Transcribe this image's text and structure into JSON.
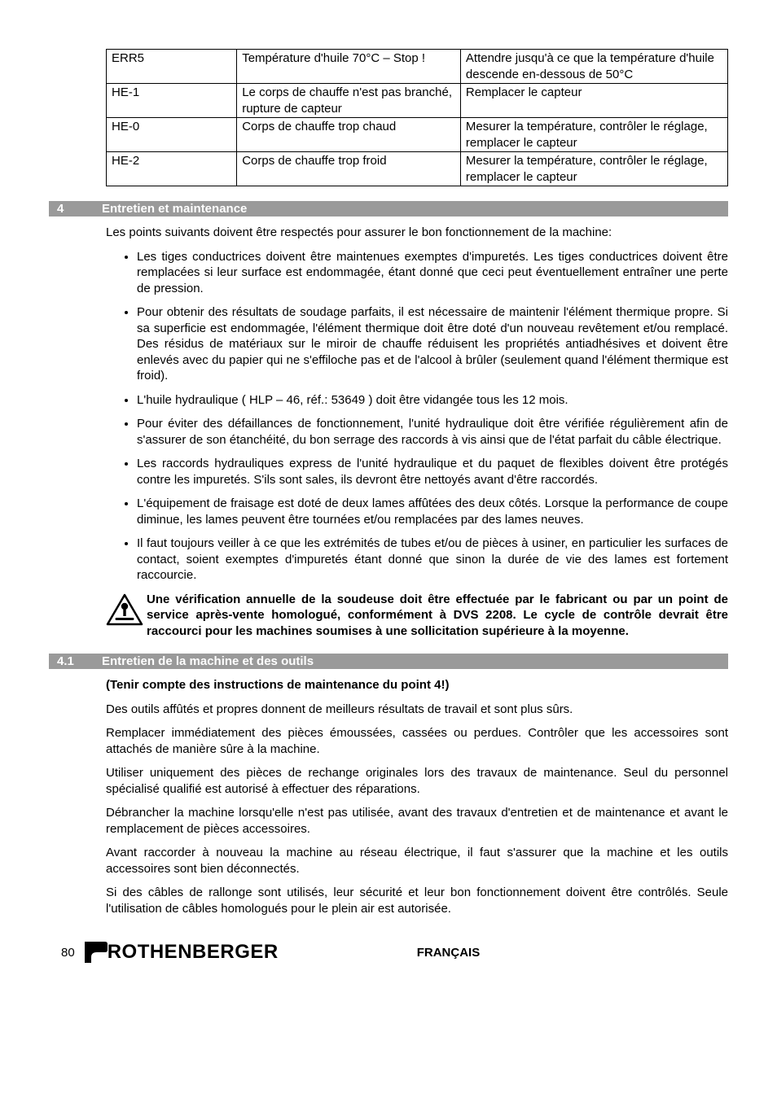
{
  "table": {
    "col_widths": [
      "21%",
      "36%",
      "43%"
    ],
    "rows": [
      {
        "code": "ERR5",
        "cause": "Température d'huile 70°C – Stop !",
        "action": "Attendre jusqu'à ce que la température d'huile descende en-dessous de 50°C"
      },
      {
        "code": "HE-1",
        "cause": "Le corps de chauffe n'est pas branché, rupture de capteur",
        "action": "Remplacer le capteur"
      },
      {
        "code": "HE-0",
        "cause": "Corps de chauffe trop chaud",
        "action": "Mesurer la température, contrôler le réglage, remplacer le capteur"
      },
      {
        "code": "HE-2",
        "cause": "Corps de chauffe trop froid",
        "action": "Mesurer la température, contrôler le réglage, remplacer le capteur"
      }
    ]
  },
  "section4": {
    "num": "4",
    "title": "Entretien et maintenance",
    "intro": "Les points suivants doivent être respectés pour assurer le bon fonctionnement de la machine:",
    "bullets": [
      "Les tiges conductrices doivent être maintenues exemptes d'impuretés. Les tiges conductrices doivent être remplacées si leur surface est endommagée, étant donné que ceci peut éventuellement entraîner une perte de pression.",
      "Pour obtenir des résultats de soudage parfaits, il est nécessaire de maintenir l'élément thermique propre. Si sa superficie est endommagée, l'élément thermique doit être doté d'un nouveau revêtement et/ou remplacé. Des résidus de matériaux sur le miroir de chauffe réduisent les propriétés antiadhésives et doivent être enlevés avec du papier qui ne s'effiloche pas et de l'alcool à brûler (seulement quand l'élément thermique est froid).",
      "L'huile hydraulique ( HLP – 46, réf.: 53649 ) doit être vidangée tous les 12 mois.",
      "Pour éviter des défaillances de fonctionnement, l'unité hydraulique doit être vérifiée régulièrement afin de s'assurer de son étanchéité, du bon serrage des raccords à vis ainsi que de l'état parfait du câble électrique.",
      "Les raccords hydrauliques express de l'unité hydraulique et du paquet de flexibles doivent être protégés contre les impuretés. S'ils sont sales, ils devront être nettoyés avant d'être raccordés.",
      "L'équipement de fraisage est doté de deux lames affûtées des deux côtés. Lorsque la performance de coupe diminue, les lames peuvent être tournées et/ou remplacées par des lames neuves.",
      "Il faut toujours veiller à ce que les extrémités de tubes et/ou de pièces à usiner, en particulier les surfaces de contact, soient exemptes d'impuretés étant donné que sinon la durée de vie des lames est fortement raccourcie."
    ],
    "warning": "Une vérification annuelle de la soudeuse doit être effectuée par le fabricant ou par un point de service après-vente homologué, conformément à DVS 2208. Le cycle de contrôle devrait être raccourci pour les machines soumises à une sollicitation supérieure à la moyenne."
  },
  "section41": {
    "num": "4.1",
    "title": "Entretien de la machine et des outils",
    "bold_line": "(Tenir compte des instructions de maintenance du point 4!)",
    "paras": [
      "Des outils affûtés et propres donnent de meilleurs résultats de travail et sont plus sûrs.",
      "Remplacer immédiatement des pièces émoussées, cassées ou perdues. Contrôler que les accessoires sont attachés de manière sûre à la machine.",
      "Utiliser uniquement des pièces de rechange originales lors des travaux de maintenance. Seul du personnel spécialisé qualifié est autorisé à effectuer des réparations.",
      "Débrancher la machine lorsqu'elle n'est pas utilisée, avant des travaux d'entretien et de maintenance et avant le remplacement de pièces accessoires.",
      "Avant raccorder à nouveau la machine au réseau électrique, il faut s'assurer que la machine et les outils accessoires sont bien déconnectés.",
      "Si des câbles de rallonge sont utilisés, leur sécurité et leur bon fonctionnement doivent être contrôlés. Seule l'utilisation de câbles homologués pour le plein air est autorisée."
    ]
  },
  "footer": {
    "page": "80",
    "brand_text": "ROTHENBERGER",
    "lang": "FRANÇAIS"
  },
  "colors": {
    "bar_bg": "#9a9a9a",
    "bar_fg": "#ffffff",
    "text": "#000000",
    "page_bg": "#ffffff"
  }
}
